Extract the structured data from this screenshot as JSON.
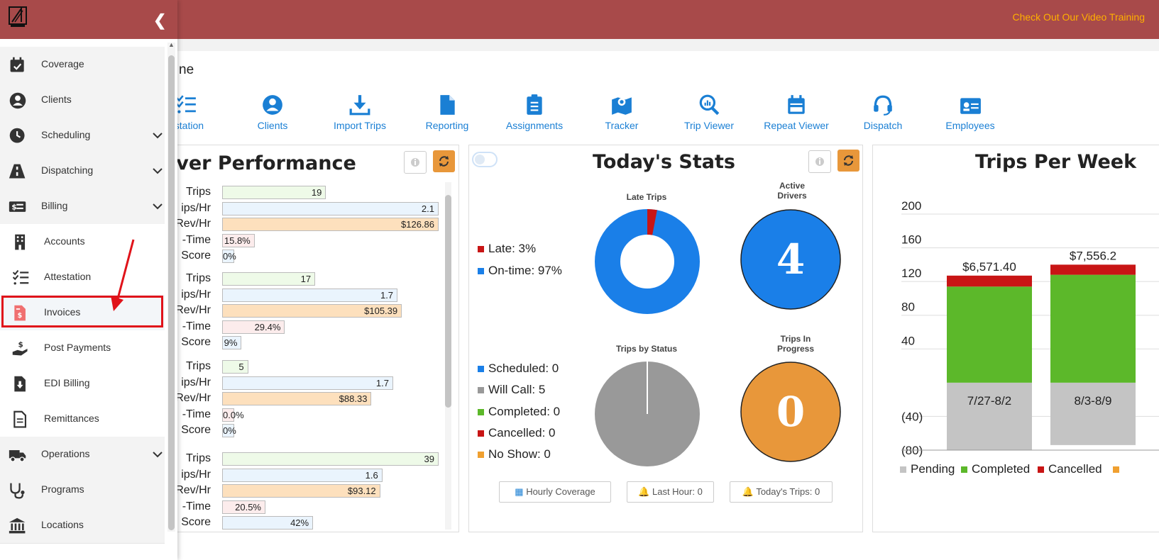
{
  "header": {
    "video_link": "Check Out Our Video Training"
  },
  "page": {
    "title": "ne"
  },
  "quick_links": [
    {
      "label": "estation",
      "icon": "list-check-icon"
    },
    {
      "label": "Clients",
      "icon": "user-circle-icon"
    },
    {
      "label": "Import Trips",
      "icon": "download-icon"
    },
    {
      "label": "Reporting",
      "icon": "file-icon"
    },
    {
      "label": "Assignments",
      "icon": "clipboard-icon"
    },
    {
      "label": "Tracker",
      "icon": "map-pin-icon"
    },
    {
      "label": "Trip Viewer",
      "icon": "search-chart-icon"
    },
    {
      "label": "Repeat Viewer",
      "icon": "calendar-icon"
    },
    {
      "label": "Dispatch",
      "icon": "headset-icon"
    },
    {
      "label": "Employees",
      "icon": "id-card-icon"
    }
  ],
  "driver_performance": {
    "title": "iver Performance",
    "labels": [
      "Trips",
      "ips/Hr",
      "Rev/Hr",
      "-Time",
      "Score"
    ],
    "drivers": [
      {
        "trips": "19",
        "trips_hr": "2.1",
        "rev_hr": "$126.86",
        "on_time": "15.8%",
        "score": "0%",
        "trips_frac": 0.48,
        "trips_hr_frac": 1.0,
        "rev_frac": 1.0,
        "on_time_frac": 0.15,
        "score_frac": 0.05
      },
      {
        "trips": "17",
        "trips_hr": "1.7",
        "rev_hr": "$105.39",
        "on_time": "29.4%",
        "score": "9%",
        "trips_frac": 0.43,
        "trips_hr_frac": 0.81,
        "rev_frac": 0.83,
        "on_time_frac": 0.29,
        "score_frac": 0.09
      },
      {
        "trips": "5",
        "trips_hr": "1.7",
        "rev_hr": "$88.33",
        "on_time": "0.0%",
        "score": "0%",
        "trips_frac": 0.12,
        "trips_hr_frac": 0.79,
        "rev_frac": 0.69,
        "on_time_frac": 0.05,
        "score_frac": 0.05
      },
      {
        "trips": "39",
        "trips_hr": "1.6",
        "rev_hr": "$93.12",
        "on_time": "20.5%",
        "score": "42%",
        "trips_frac": 1.0,
        "trips_hr_frac": 0.74,
        "rev_frac": 0.73,
        "on_time_frac": 0.2,
        "score_frac": 0.42
      }
    ]
  },
  "todays_stats": {
    "title": "Today's Stats",
    "late_trips_title": "Late Trips",
    "active_drivers_title": "Active Drivers",
    "active_drivers_value": "4",
    "late_legend": [
      {
        "label": "Late: 3%",
        "color": "#c81515"
      },
      {
        "label": "On-time: 97%",
        "color": "#1a7fe8"
      }
    ],
    "late_fraction": 0.03,
    "status_title": "Trips by Status",
    "in_progress_title": "Trips In Progress",
    "in_progress_value": "0",
    "status_legend": [
      {
        "label": "Scheduled: 0",
        "color": "#1a7fe8"
      },
      {
        "label": "Will Call: 5",
        "color": "#999999"
      },
      {
        "label": "Completed: 0",
        "color": "#5cb82a"
      },
      {
        "label": "Cancelled: 0",
        "color": "#c81515"
      },
      {
        "label": "No Show: 0",
        "color": "#f0a030"
      }
    ],
    "buttons": [
      "Hourly Coverage",
      "Last Hour: 0",
      "Today's Trips: 0"
    ]
  },
  "trips_per_week": {
    "title": "Trips Per Week",
    "legend": [
      {
        "label": "Pending",
        "color": "#c4c4c4"
      },
      {
        "label": "Completed",
        "color": "#5cb82a"
      },
      {
        "label": "Cancelled",
        "color": "#c81515"
      }
    ]
  },
  "chart_data": {
    "type": "bar",
    "title": "Trips Per Week",
    "categories": [
      "7/27-8/2",
      "8/3-8/9"
    ],
    "series": [
      {
        "name": "Pending",
        "values": [
          -80,
          -74
        ]
      },
      {
        "name": "Completed",
        "values": [
          114,
          128
        ]
      },
      {
        "name": "Cancelled",
        "values": [
          13,
          12
        ]
      }
    ],
    "bar_labels": [
      "$6,571.40",
      "$7,556.2"
    ],
    "y_ticks": [
      "200",
      "160",
      "120",
      "80",
      "40",
      "(40)",
      "(80)"
    ],
    "ylim": [
      -80,
      200
    ],
    "legend_position": "bottom"
  },
  "sidebar": {
    "items": [
      {
        "label": "Coverage",
        "icon": "calendar-check-icon",
        "type": "top",
        "chevron": false
      },
      {
        "label": "Clients",
        "icon": "user-circle-icon",
        "type": "top",
        "chevron": false
      },
      {
        "label": "Scheduling",
        "icon": "clock-icon",
        "type": "top",
        "chevron": true
      },
      {
        "label": "Dispatching",
        "icon": "road-icon",
        "type": "top",
        "chevron": true
      },
      {
        "label": "Billing",
        "icon": "money-check-icon",
        "type": "top",
        "chevron": true
      },
      {
        "label": "Accounts",
        "icon": "building-icon",
        "type": "sub",
        "chevron": false
      },
      {
        "label": "Attestation",
        "icon": "list-check-icon",
        "type": "sub",
        "chevron": false
      },
      {
        "label": "Invoices",
        "icon": "invoice-dollar-icon",
        "type": "sub",
        "chevron": false
      },
      {
        "label": "Post Payments",
        "icon": "hand-dollar-icon",
        "type": "sub",
        "chevron": false
      },
      {
        "label": "EDI Billing",
        "icon": "file-download-icon",
        "type": "sub",
        "chevron": false
      },
      {
        "label": "Remittances",
        "icon": "file-lines-icon",
        "type": "sub",
        "chevron": false
      },
      {
        "label": "Operations",
        "icon": "truck-icon",
        "type": "top",
        "chevron": true
      },
      {
        "label": "Programs",
        "icon": "stethoscope-icon",
        "type": "top",
        "chevron": false
      },
      {
        "label": "Locations",
        "icon": "landmark-icon",
        "type": "top",
        "chevron": false
      }
    ]
  },
  "colors": {
    "header": "#a84a4a",
    "accent_blue": "#1a7fd4",
    "orange": "#e8973a"
  }
}
